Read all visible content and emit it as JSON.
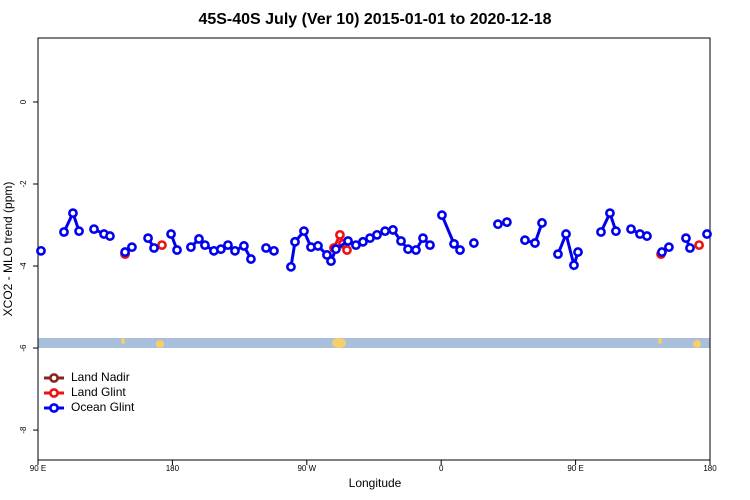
{
  "chart_data": {
    "type": "line",
    "title": "45S-40S July (Ver 10)   2015-01-01 to 2020-12-18",
    "x_label": "Longitude",
    "y_label": "XCO2 - MLO trend (ppm)",
    "xlim": [
      90,
      540
    ],
    "ylim": [
      -8.73,
      1.56
    ],
    "xticks": [
      {
        "value": 90,
        "label": "90 E"
      },
      180,
      {
        "value": 270,
        "label": "90 W"
      },
      {
        "value": 360,
        "label": "0"
      },
      {
        "value": 450,
        "label": "90 E"
      },
      {
        "value": 540,
        "label": "180"
      }
    ],
    "yticks": [
      0,
      -2,
      -4,
      -6,
      -8
    ],
    "legend": "bottom-left",
    "series": [
      {
        "name": "Land Nadir",
        "color": "#8b2323",
        "x": [],
        "values": []
      },
      {
        "name": "Land Glint",
        "color": "#ee1111",
        "x": [
          148.3,
          null,
          173.0,
          null,
          288.2,
          292.2,
          294.2,
          296.9,
          null,
          507.2,
          null,
          532.7
        ],
        "values": [
          -3.71,
          null,
          -3.49,
          null,
          -3.56,
          -3.24,
          -3.46,
          -3.61,
          null,
          -3.71,
          null,
          -3.49
        ]
      },
      {
        "name": "Ocean Glint",
        "color": "#0000ee",
        "x": [
          92.0,
          null,
          107.4,
          113.4,
          117.5,
          null,
          127.5,
          134.2,
          138.2,
          null,
          148.3,
          152.9,
          null,
          163.7,
          167.7,
          null,
          179.1,
          183.1,
          null,
          192.4,
          197.8,
          201.8,
          207.8,
          212.5,
          217.2,
          221.9,
          227.9,
          232.6,
          null,
          242.7,
          248.0,
          null,
          259.4,
          262.1,
          268.1,
          272.8,
          277.5,
          283.5,
          286.2,
          289.5,
          297.6,
          302.9,
          307.6,
          312.3,
          317.0,
          322.4,
          327.7,
          333.1,
          337.8,
          343.1,
          347.8,
          352.5,
          null,
          360.5,
          368.6,
          372.6,
          null,
          381.9,
          null,
          398.0,
          404.0,
          null,
          416.1,
          422.8,
          427.5,
          null,
          438.2,
          443.6,
          448.9,
          451.6,
          null,
          467.0,
          473.0,
          477.0,
          null,
          487.1,
          493.1,
          497.8,
          null,
          507.8,
          512.5,
          null,
          523.9,
          526.6,
          null,
          538.0
        ],
        "values": [
          -3.63,
          null,
          -3.17,
          -2.71,
          -3.15,
          null,
          -3.1,
          -3.22,
          -3.27,
          null,
          -3.66,
          -3.54,
          null,
          -3.32,
          -3.56,
          null,
          -3.22,
          -3.61,
          null,
          -3.54,
          -3.34,
          -3.49,
          -3.63,
          -3.59,
          -3.49,
          -3.63,
          -3.51,
          -3.83,
          null,
          -3.56,
          -3.63,
          null,
          -4.02,
          -3.41,
          -3.15,
          -3.54,
          -3.51,
          -3.73,
          -3.88,
          -3.59,
          -3.39,
          -3.49,
          -3.41,
          -3.32,
          -3.24,
          -3.15,
          -3.12,
          -3.39,
          -3.59,
          -3.61,
          -3.32,
          -3.49,
          null,
          -2.76,
          -3.46,
          -3.61,
          null,
          -3.44,
          null,
          -2.98,
          -2.93,
          null,
          -3.37,
          -3.44,
          -2.95,
          null,
          -3.71,
          -3.22,
          -3.98,
          -3.66,
          null,
          -3.17,
          -2.71,
          -3.15,
          null,
          -3.1,
          -3.22,
          -3.27,
          null,
          -3.66,
          -3.54,
          null,
          -3.32,
          -3.56,
          null,
          -3.22
        ]
      }
    ]
  }
}
